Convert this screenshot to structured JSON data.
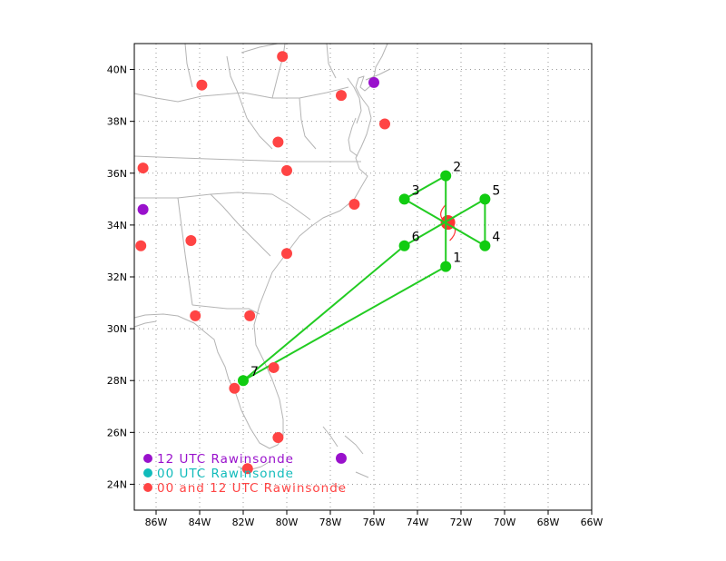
{
  "colors": {
    "frame": "#000000",
    "grid": "#9a9a9a",
    "coast": "#b4b4b4",
    "track": "#22cc22",
    "drop": "#11cc11",
    "rawin_both": "#ff4444",
    "rawin_12": "#9911cc",
    "rawin_00": "#11bbbb",
    "storm": "#ff3333"
  },
  "axes": {
    "lon_range": [
      -87,
      -66
    ],
    "lat_range": [
      23,
      41
    ],
    "lon_ticks": [
      {
        "value": -86,
        "label": "86W"
      },
      {
        "value": -84,
        "label": "84W"
      },
      {
        "value": -82,
        "label": "82W"
      },
      {
        "value": -80,
        "label": "80W"
      },
      {
        "value": -78,
        "label": "78W"
      },
      {
        "value": -76,
        "label": "76W"
      },
      {
        "value": -74,
        "label": "74W"
      },
      {
        "value": -72,
        "label": "72W"
      },
      {
        "value": -70,
        "label": "70W"
      },
      {
        "value": -68,
        "label": "68W"
      },
      {
        "value": -66,
        "label": "66W"
      }
    ],
    "lat_ticks": [
      {
        "value": 24,
        "label": "24N"
      },
      {
        "value": 26,
        "label": "26N"
      },
      {
        "value": 28,
        "label": "28N"
      },
      {
        "value": 30,
        "label": "30N"
      },
      {
        "value": 32,
        "label": "32N"
      },
      {
        "value": 34,
        "label": "34N"
      },
      {
        "value": 36,
        "label": "36N"
      },
      {
        "value": 38,
        "label": "38N"
      },
      {
        "value": 40,
        "label": "40N"
      }
    ],
    "grid": true
  },
  "storm_center": {
    "lon": -72.6,
    "lat": 34.1
  },
  "flight_track": [
    {
      "label": "7",
      "lon": -82.0,
      "lat": 28.0
    },
    {
      "label": "1",
      "lon": -72.7,
      "lat": 32.4
    },
    {
      "label": "2",
      "lon": -72.7,
      "lat": 35.9
    },
    {
      "label": "3",
      "lon": -74.6,
      "lat": 35.0
    },
    {
      "label": "4",
      "lon": -70.9,
      "lat": 33.2
    },
    {
      "label": "5",
      "lon": -70.9,
      "lat": 35.0
    },
    {
      "label": "6",
      "lon": -74.6,
      "lat": 33.2
    },
    {
      "label": "",
      "lon": -82.0,
      "lat": 28.0
    }
  ],
  "rawinsondes": [
    {
      "type": "both",
      "lon": -80.2,
      "lat": 40.5
    },
    {
      "type": "both",
      "lon": -83.9,
      "lat": 39.4
    },
    {
      "type": "both",
      "lon": -77.5,
      "lat": 39.0
    },
    {
      "type": "12",
      "lon": -76.0,
      "lat": 39.5
    },
    {
      "type": "both",
      "lon": -75.5,
      "lat": 37.9
    },
    {
      "type": "both",
      "lon": -80.4,
      "lat": 37.2
    },
    {
      "type": "both",
      "lon": -86.6,
      "lat": 36.2
    },
    {
      "type": "both",
      "lon": -80.0,
      "lat": 36.1
    },
    {
      "type": "both",
      "lon": -76.9,
      "lat": 34.8
    },
    {
      "type": "12",
      "lon": -86.6,
      "lat": 34.6
    },
    {
      "type": "both",
      "lon": -84.4,
      "lat": 33.4
    },
    {
      "type": "both",
      "lon": -86.7,
      "lat": 33.2
    },
    {
      "type": "both",
      "lon": -80.0,
      "lat": 32.9
    },
    {
      "type": "both",
      "lon": -84.2,
      "lat": 30.5
    },
    {
      "type": "both",
      "lon": -81.7,
      "lat": 30.5
    },
    {
      "type": "both",
      "lon": -80.6,
      "lat": 28.5
    },
    {
      "type": "both",
      "lon": -82.4,
      "lat": 27.7
    },
    {
      "type": "both",
      "lon": -80.4,
      "lat": 25.8
    },
    {
      "type": "12",
      "lon": -77.5,
      "lat": 25.0
    },
    {
      "type": "both",
      "lon": -81.8,
      "lat": 24.6
    }
  ],
  "legend": [
    {
      "label": "12 UTC Rawinsonde",
      "color_key": "rawin_12"
    },
    {
      "label": "00 UTC Rawinsonde",
      "color_key": "rawin_00"
    },
    {
      "label": "00 and 12 UTC Rawinsonde",
      "color_key": "rawin_both"
    }
  ]
}
